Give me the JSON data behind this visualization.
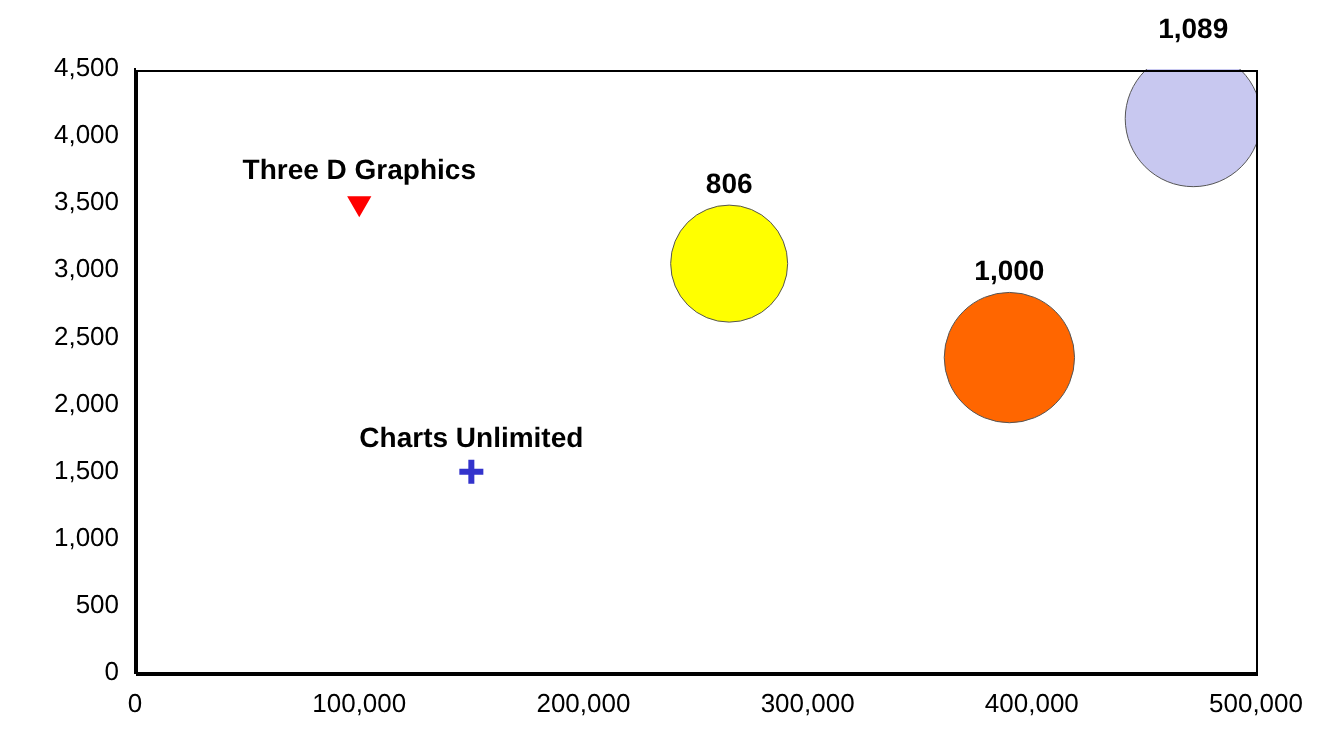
{
  "chart_data": {
    "type": "bubble",
    "xlim": [
      0,
      500000
    ],
    "xticks": [
      0,
      {
        "value": 100000,
        "label": "100,000"
      },
      {
        "value": 200000,
        "label": "200,000"
      },
      {
        "value": 300000,
        "label": "300,000"
      },
      {
        "value": 400000,
        "label": "400,000"
      },
      {
        "value": 500000,
        "label": "500,000"
      }
    ],
    "ylim": [
      0,
      4500
    ],
    "yticks": [
      0,
      500,
      {
        "value": 1000,
        "label": "1,000"
      },
      {
        "value": 1500,
        "label": "1,500"
      },
      {
        "value": 2000,
        "label": "2,000"
      },
      {
        "value": 2500,
        "label": "2,500"
      },
      {
        "value": 3000,
        "label": "3,000"
      },
      {
        "value": 3500,
        "label": "3,500"
      },
      {
        "value": 4000,
        "label": "4,000"
      },
      {
        "value": 4500,
        "label": "4,500"
      }
    ],
    "legend": false,
    "grid": false,
    "series": [
      {
        "type": "bubble",
        "x": [
          265000,
          390000,
          472000
        ],
        "values": [
          3050,
          2350,
          4130
        ],
        "sizes": [
          806,
          1000,
          1089
        ],
        "colors": [
          "#ffff00",
          "#ff6600",
          "#c8c8f0"
        ],
        "value_labels": [
          "806",
          "1,000",
          "1,089"
        ]
      },
      {
        "type": "scatter",
        "x": [
          100000
        ],
        "values": [
          3500
        ],
        "color": "#ff0000",
        "marker": "triangle"
      },
      {
        "type": "scatter",
        "x": [
          150000
        ],
        "values": [
          1500
        ],
        "color": "#3333cc",
        "marker": "cross"
      }
    ],
    "annotations": [
      {
        "text": "Three D Graphics",
        "x": 100000,
        "y": 3500
      },
      {
        "text": "Charts Unlimited",
        "x": 150000,
        "y": 1500
      }
    ]
  }
}
